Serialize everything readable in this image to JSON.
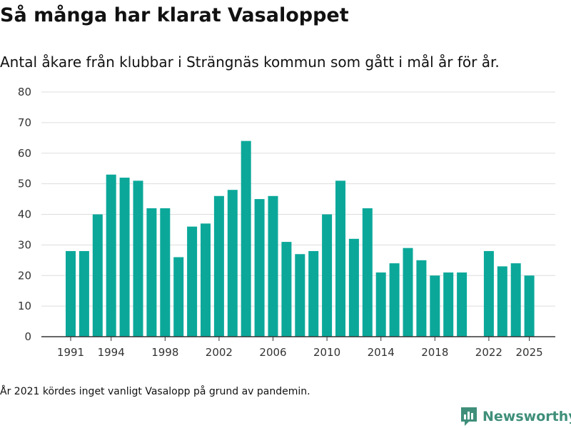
{
  "title": "Så många har klarat Vasaloppet",
  "subtitle": "Antal åkare från klubbar i Strängnäs kommun som gått i mål år för år.",
  "footnote": "År 2021 kördes inget vanligt Vasalopp på grund av pandemin.",
  "brand": {
    "name": "Newsworthy",
    "icon": "newsworthy-logo-icon"
  },
  "colors": {
    "bar": "#0ba89a",
    "grid": "#dddddd",
    "axis": "#333333",
    "brand": "#3f8f7a"
  },
  "chart_data": {
    "type": "bar",
    "title": "Så många har klarat Vasaloppet",
    "xlabel": "",
    "ylabel": "",
    "ylim": [
      0,
      80
    ],
    "yticks": [
      0,
      10,
      20,
      30,
      40,
      50,
      60,
      70,
      80
    ],
    "xticks": [
      1991,
      1994,
      1998,
      2002,
      2006,
      2010,
      2014,
      2018,
      2022,
      2025
    ],
    "categories": [
      1991,
      1992,
      1993,
      1994,
      1995,
      1996,
      1997,
      1998,
      1999,
      2000,
      2001,
      2002,
      2003,
      2004,
      2005,
      2006,
      2007,
      2008,
      2009,
      2010,
      2011,
      2012,
      2013,
      2014,
      2015,
      2016,
      2017,
      2018,
      2019,
      2020,
      2021,
      2022,
      2023,
      2024,
      2025
    ],
    "values": [
      28,
      28,
      40,
      53,
      52,
      51,
      42,
      42,
      26,
      36,
      37,
      46,
      48,
      64,
      45,
      46,
      31,
      27,
      28,
      40,
      51,
      32,
      42,
      21,
      24,
      29,
      25,
      20,
      21,
      21,
      null,
      28,
      23,
      24,
      20
    ],
    "grid": true,
    "legend": "none"
  }
}
